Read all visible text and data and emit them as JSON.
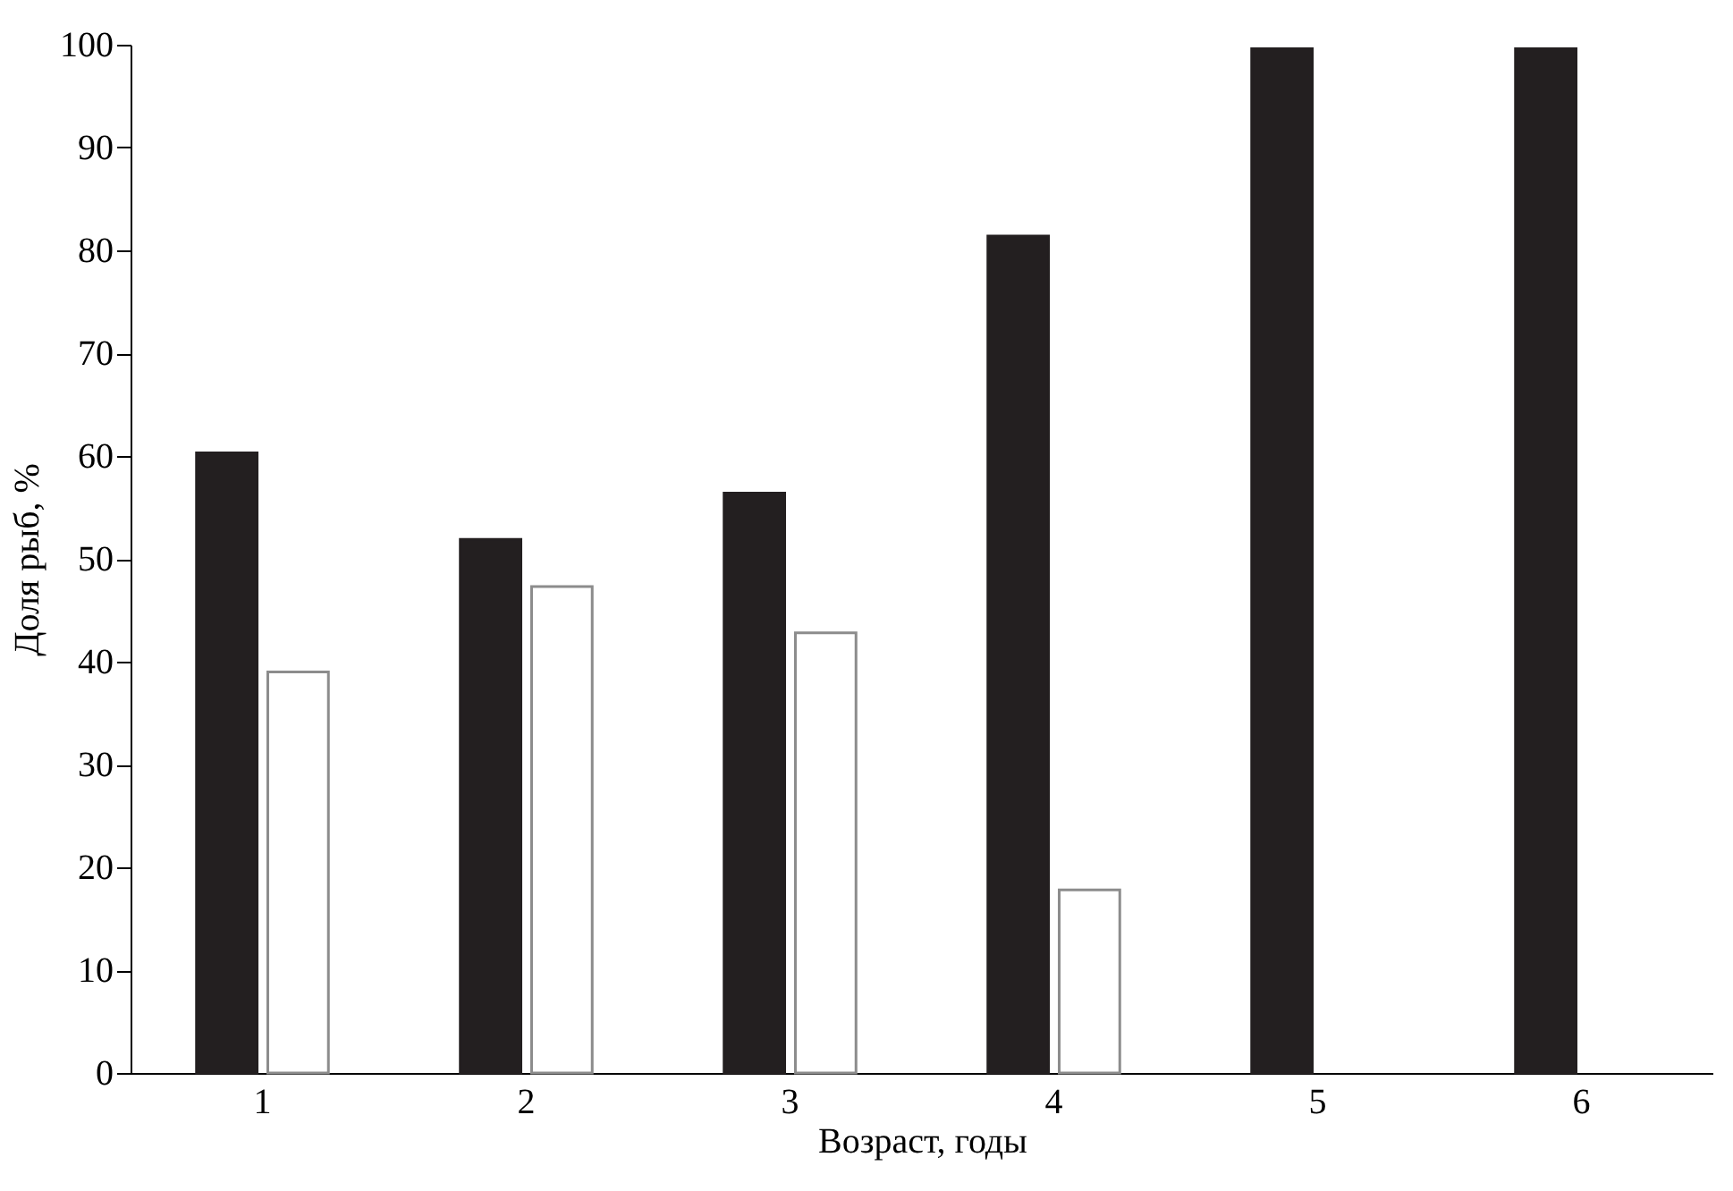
{
  "chart_data": {
    "type": "bar",
    "xlabel": "Возраст, годы",
    "ylabel": "Доля рыб, %",
    "categories": [
      "1",
      "2",
      "3",
      "4",
      "5",
      "6"
    ],
    "series": [
      {
        "color": "#231f20",
        "values": [
          60.3,
          51.9,
          56.4,
          81.4,
          99.6,
          99.6
        ]
      },
      {
        "color": "#ffffff",
        "values": [
          39.0,
          47.3,
          42.8,
          17.8,
          null,
          null
        ]
      }
    ],
    "ylim": [
      0,
      100
    ],
    "yticks": [
      0,
      10,
      20,
      30,
      40,
      50,
      60,
      70,
      80,
      90,
      100
    ],
    "grid": false,
    "legend": false
  }
}
